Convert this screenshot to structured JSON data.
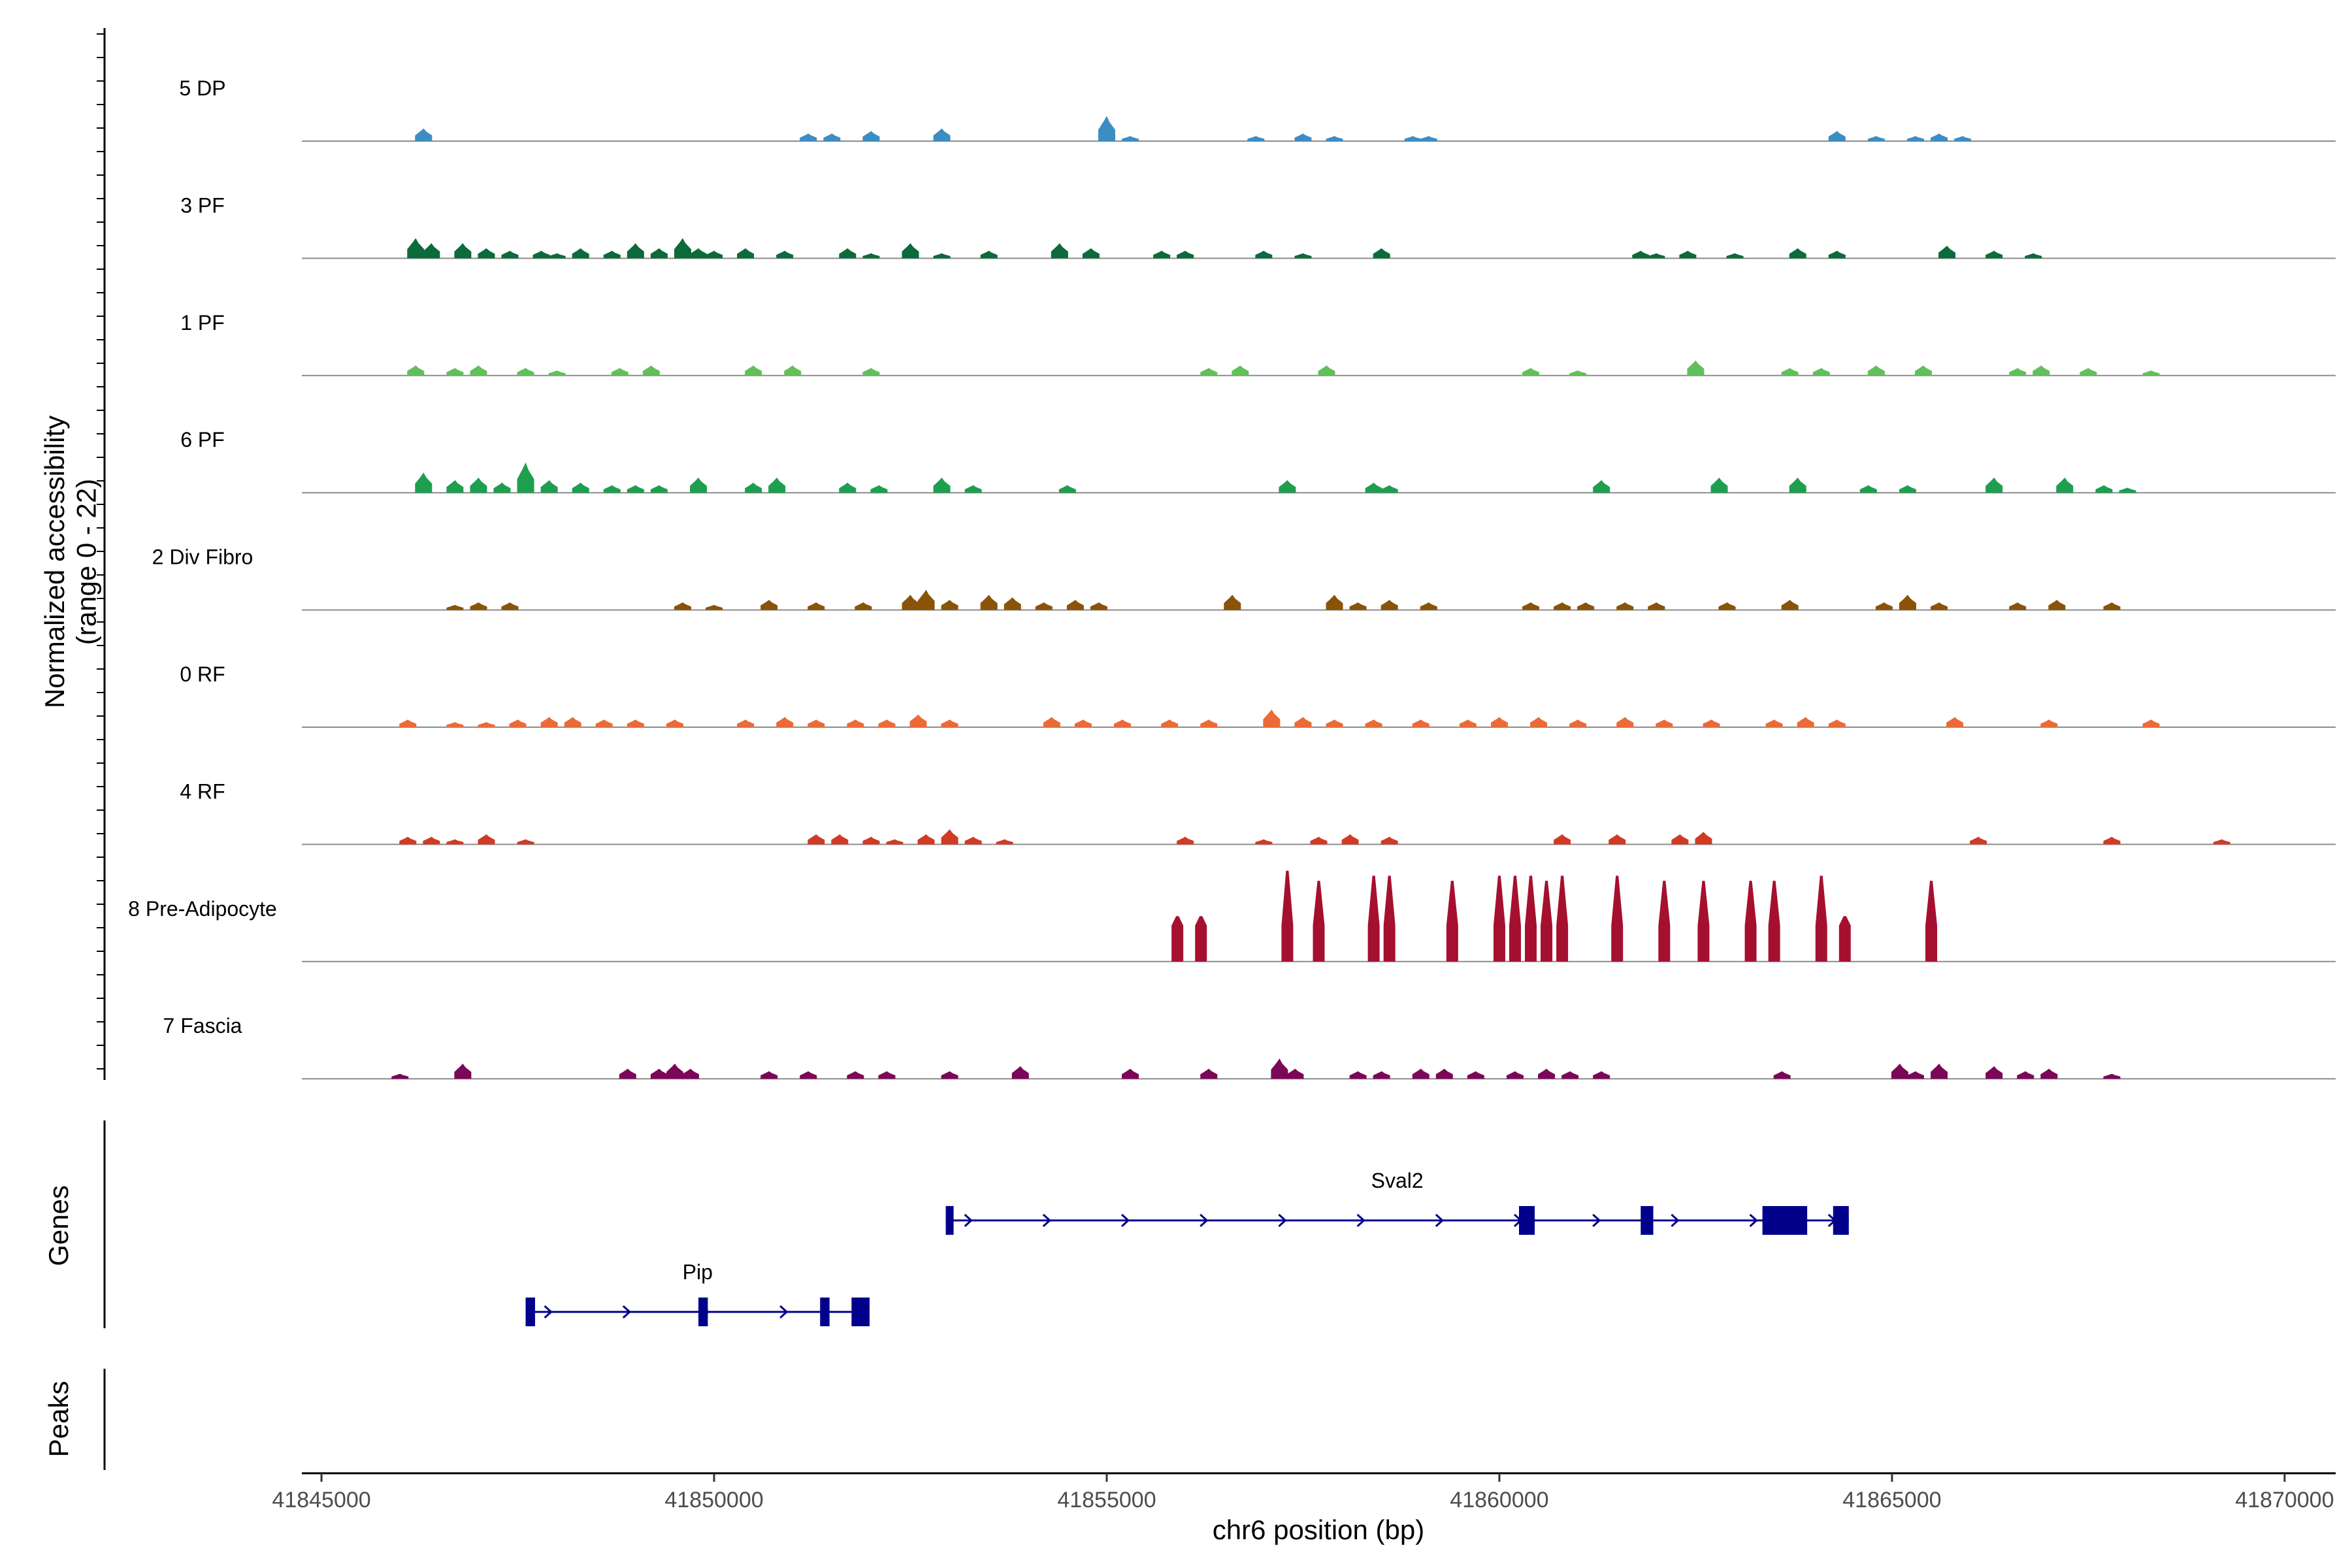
{
  "chart_data": {
    "type": "coverage",
    "ylabel": "Normalized accessibility\n(range 0 - 22)",
    "xlabel": "chr6 position (bp)",
    "xlim": [
      41844900,
      41870600
    ],
    "ylim": [
      0,
      22
    ],
    "x_ticks": [
      41845000,
      41850000,
      41855000,
      41860000,
      41865000,
      41870000
    ],
    "x_tick_labels": [
      "41845000",
      "41850000",
      "41855000",
      "41860000",
      "41865000",
      "41870000"
    ],
    "panel_titles": {
      "genes": "Genes",
      "peaks": "Peaks"
    },
    "tracks": [
      {
        "name": "5 DP",
        "color": "#3c8dc4",
        "peaks": [
          [
            41846300,
            2.5
          ],
          [
            41851200,
            1.5
          ],
          [
            41851500,
            1.5
          ],
          [
            41852000,
            2
          ],
          [
            41852900,
            2.5
          ],
          [
            41855000,
            5
          ],
          [
            41855300,
            1
          ],
          [
            41856900,
            1
          ],
          [
            41857500,
            1.5
          ],
          [
            41857900,
            1
          ],
          [
            41858900,
            1
          ],
          [
            41859100,
            1
          ],
          [
            41864300,
            2
          ],
          [
            41864800,
            1
          ],
          [
            41865300,
            1
          ],
          [
            41865600,
            1.5
          ],
          [
            41865900,
            1
          ]
        ]
      },
      {
        "name": "3 PF",
        "color": "#0b6b3a",
        "peaks": [
          [
            41846200,
            4
          ],
          [
            41846400,
            3
          ],
          [
            41846800,
            3
          ],
          [
            41847100,
            2
          ],
          [
            41847400,
            1.5
          ],
          [
            41847800,
            1.5
          ],
          [
            41848000,
            1
          ],
          [
            41848300,
            2
          ],
          [
            41848700,
            1.5
          ],
          [
            41849000,
            3
          ],
          [
            41849300,
            2
          ],
          [
            41849600,
            4
          ],
          [
            41849800,
            2
          ],
          [
            41850000,
            1.5
          ],
          [
            41850400,
            2
          ],
          [
            41850900,
            1.5
          ],
          [
            41851700,
            2
          ],
          [
            41852000,
            1
          ],
          [
            41852500,
            3
          ],
          [
            41852900,
            1
          ],
          [
            41853500,
            1.5
          ],
          [
            41854400,
            3
          ],
          [
            41854800,
            2
          ],
          [
            41855700,
            1.5
          ],
          [
            41856000,
            1.5
          ],
          [
            41857000,
            1.5
          ],
          [
            41857500,
            1
          ],
          [
            41858500,
            2
          ],
          [
            41861800,
            1.5
          ],
          [
            41862000,
            1
          ],
          [
            41862400,
            1.5
          ],
          [
            41863000,
            1
          ],
          [
            41863800,
            2
          ],
          [
            41864300,
            1.5
          ],
          [
            41865700,
            2.5
          ],
          [
            41866300,
            1.5
          ],
          [
            41866800,
            1
          ]
        ]
      },
      {
        "name": "1 PF",
        "color": "#62c05a",
        "peaks": [
          [
            41846200,
            2
          ],
          [
            41846700,
            1.5
          ],
          [
            41847000,
            2
          ],
          [
            41847600,
            1.5
          ],
          [
            41848000,
            1
          ],
          [
            41848800,
            1.5
          ],
          [
            41849200,
            2
          ],
          [
            41850500,
            2
          ],
          [
            41851000,
            2
          ],
          [
            41852000,
            1.5
          ],
          [
            41856300,
            1.5
          ],
          [
            41856700,
            2
          ],
          [
            41857800,
            2
          ],
          [
            41860400,
            1.5
          ],
          [
            41861000,
            1
          ],
          [
            41862500,
            3
          ],
          [
            41863700,
            1.5
          ],
          [
            41864100,
            1.5
          ],
          [
            41864800,
            2
          ],
          [
            41865400,
            2
          ],
          [
            41866600,
            1.5
          ],
          [
            41866900,
            2
          ],
          [
            41867500,
            1.5
          ],
          [
            41868300,
            1
          ]
        ]
      },
      {
        "name": "6 PF",
        "color": "#1e9f4f",
        "peaks": [
          [
            41846300,
            4
          ],
          [
            41846700,
            2.5
          ],
          [
            41847000,
            3
          ],
          [
            41847300,
            2
          ],
          [
            41847600,
            6
          ],
          [
            41847900,
            2.5
          ],
          [
            41848300,
            2
          ],
          [
            41848700,
            1.5
          ],
          [
            41849000,
            1.5
          ],
          [
            41849300,
            1.5
          ],
          [
            41849800,
            3
          ],
          [
            41850500,
            2
          ],
          [
            41850800,
            3
          ],
          [
            41851700,
            2
          ],
          [
            41852100,
            1.5
          ],
          [
            41852900,
            3
          ],
          [
            41853300,
            1.5
          ],
          [
            41854500,
            1.5
          ],
          [
            41857300,
            2.5
          ],
          [
            41858400,
            2
          ],
          [
            41858600,
            1.5
          ],
          [
            41861300,
            2.5
          ],
          [
            41862800,
            3
          ],
          [
            41863800,
            3
          ],
          [
            41864700,
            1.5
          ],
          [
            41865200,
            1.5
          ],
          [
            41866300,
            3
          ],
          [
            41867200,
            3
          ],
          [
            41867700,
            1.5
          ],
          [
            41868000,
            1
          ]
        ]
      },
      {
        "name": "2 Div Fibro",
        "color": "#8a5308",
        "peaks": [
          [
            41846700,
            1
          ],
          [
            41847000,
            1.5
          ],
          [
            41847400,
            1.5
          ],
          [
            41849600,
            1.5
          ],
          [
            41850000,
            1
          ],
          [
            41850700,
            2
          ],
          [
            41851300,
            1.5
          ],
          [
            41851900,
            1.5
          ],
          [
            41852500,
            3
          ],
          [
            41852700,
            4
          ],
          [
            41853000,
            2
          ],
          [
            41853500,
            3
          ],
          [
            41853800,
            2.5
          ],
          [
            41854200,
            1.5
          ],
          [
            41854600,
            2
          ],
          [
            41854900,
            1.5
          ],
          [
            41856600,
            3
          ],
          [
            41857900,
            3
          ],
          [
            41858200,
            1.5
          ],
          [
            41858600,
            2
          ],
          [
            41859100,
            1.5
          ],
          [
            41860400,
            1.5
          ],
          [
            41860800,
            1.5
          ],
          [
            41861100,
            1.5
          ],
          [
            41861600,
            1.5
          ],
          [
            41862000,
            1.5
          ],
          [
            41862900,
            1.5
          ],
          [
            41863700,
            2
          ],
          [
            41864900,
            1.5
          ],
          [
            41865200,
            3
          ],
          [
            41865600,
            1.5
          ],
          [
            41866600,
            1.5
          ],
          [
            41867100,
            2
          ],
          [
            41867800,
            1.5
          ]
        ]
      },
      {
        "name": "0 RF",
        "color": "#ec6a37",
        "peaks": [
          [
            41846100,
            1.5
          ],
          [
            41846700,
            1
          ],
          [
            41847100,
            1
          ],
          [
            41847500,
            1.5
          ],
          [
            41847900,
            2
          ],
          [
            41848200,
            2
          ],
          [
            41848600,
            1.5
          ],
          [
            41849000,
            1.5
          ],
          [
            41849500,
            1.5
          ],
          [
            41850400,
            1.5
          ],
          [
            41850900,
            2
          ],
          [
            41851300,
            1.5
          ],
          [
            41851800,
            1.5
          ],
          [
            41852200,
            1.5
          ],
          [
            41852600,
            2.5
          ],
          [
            41853000,
            1.5
          ],
          [
            41854300,
            2
          ],
          [
            41854700,
            1.5
          ],
          [
            41855200,
            1.5
          ],
          [
            41855800,
            1.5
          ],
          [
            41856300,
            1.5
          ],
          [
            41857100,
            3.5
          ],
          [
            41857500,
            2
          ],
          [
            41857900,
            1.5
          ],
          [
            41858400,
            1.5
          ],
          [
            41859000,
            1.5
          ],
          [
            41859600,
            1.5
          ],
          [
            41860000,
            2
          ],
          [
            41860500,
            2
          ],
          [
            41861000,
            1.5
          ],
          [
            41861600,
            2
          ],
          [
            41862100,
            1.5
          ],
          [
            41862700,
            1.5
          ],
          [
            41863500,
            1.5
          ],
          [
            41863900,
            2
          ],
          [
            41864300,
            1.5
          ],
          [
            41865800,
            2
          ],
          [
            41867000,
            1.5
          ],
          [
            41868300,
            1.5
          ]
        ]
      },
      {
        "name": "4 RF",
        "color": "#d23a23",
        "peaks": [
          [
            41846100,
            1.5
          ],
          [
            41846400,
            1.5
          ],
          [
            41846700,
            1
          ],
          [
            41847100,
            2
          ],
          [
            41847600,
            1
          ],
          [
            41851300,
            2
          ],
          [
            41851600,
            2
          ],
          [
            41852000,
            1.5
          ],
          [
            41852300,
            1
          ],
          [
            41852700,
            2
          ],
          [
            41853000,
            3
          ],
          [
            41853300,
            1.5
          ],
          [
            41853700,
            1
          ],
          [
            41856000,
            1.5
          ],
          [
            41857000,
            1
          ],
          [
            41857700,
            1.5
          ],
          [
            41858100,
            2
          ],
          [
            41858600,
            1.5
          ],
          [
            41860800,
            2
          ],
          [
            41861500,
            2
          ],
          [
            41862300,
            2
          ],
          [
            41862600,
            2.5
          ],
          [
            41866100,
            1.5
          ],
          [
            41867800,
            1.5
          ],
          [
            41869200,
            1
          ]
        ]
      },
      {
        "name": "8 Pre-Adipocyte",
        "color": "#a5102e",
        "peaks": [
          [
            41855900,
            9
          ],
          [
            41856200,
            9
          ],
          [
            41857300,
            18
          ],
          [
            41857700,
            16
          ],
          [
            41858400,
            17
          ],
          [
            41858600,
            17
          ],
          [
            41859400,
            16
          ],
          [
            41860000,
            17
          ],
          [
            41860200,
            17
          ],
          [
            41860400,
            17
          ],
          [
            41860600,
            16
          ],
          [
            41860800,
            17
          ],
          [
            41861500,
            17
          ],
          [
            41862100,
            16
          ],
          [
            41862600,
            16
          ],
          [
            41863200,
            16
          ],
          [
            41863500,
            16
          ],
          [
            41864100,
            17
          ],
          [
            41864400,
            9
          ],
          [
            41865500,
            16
          ]
        ]
      },
      {
        "name": "7 Fascia",
        "color": "#7c0657",
        "peaks": [
          [
            41846000,
            1
          ],
          [
            41846800,
            3
          ],
          [
            41848900,
            2
          ],
          [
            41849300,
            2
          ],
          [
            41849500,
            3
          ],
          [
            41849700,
            2
          ],
          [
            41850700,
            1.5
          ],
          [
            41851200,
            1.5
          ],
          [
            41851800,
            1.5
          ],
          [
            41852200,
            1.5
          ],
          [
            41853000,
            1.5
          ],
          [
            41853900,
            2.5
          ],
          [
            41855300,
            2
          ],
          [
            41856300,
            2
          ],
          [
            41857200,
            4
          ],
          [
            41857400,
            2
          ],
          [
            41858200,
            1.5
          ],
          [
            41858500,
            1.5
          ],
          [
            41859000,
            2
          ],
          [
            41859300,
            2
          ],
          [
            41859700,
            1.5
          ],
          [
            41860200,
            1.5
          ],
          [
            41860600,
            2
          ],
          [
            41860900,
            1.5
          ],
          [
            41861300,
            1.5
          ],
          [
            41863600,
            1.5
          ],
          [
            41865100,
            3
          ],
          [
            41865300,
            1.5
          ],
          [
            41865600,
            3
          ],
          [
            41866300,
            2.5
          ],
          [
            41866700,
            1.5
          ],
          [
            41867000,
            2
          ],
          [
            41867800,
            1
          ]
        ]
      }
    ],
    "genes": [
      {
        "name": "Sval2",
        "start": 41852950,
        "end": 41864450,
        "strand": "+",
        "exons": [
          [
            41852950,
            41853050
          ],
          [
            41860250,
            41860450
          ],
          [
            41861800,
            41861960
          ],
          [
            41863350,
            41863920
          ],
          [
            41864250,
            41864450
          ]
        ]
      },
      {
        "name": "Pip",
        "start": 41847600,
        "end": 41851980,
        "strand": "+",
        "exons": [
          [
            41847600,
            41847720
          ],
          [
            41849800,
            41849920
          ],
          [
            41851350,
            41851470
          ],
          [
            41851750,
            41851980
          ]
        ]
      }
    ]
  }
}
